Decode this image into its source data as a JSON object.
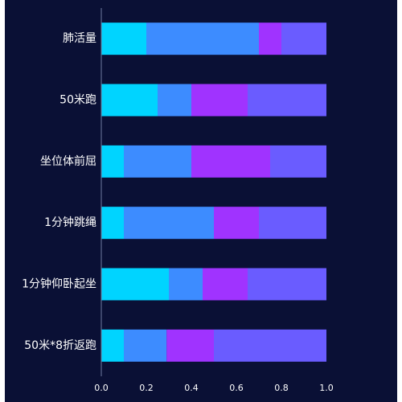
{
  "chart_data": {
    "type": "bar",
    "orientation": "horizontal",
    "stacked": true,
    "categories": [
      "肺活量",
      "50米跑",
      "坐位体前屈",
      "1分钟跳绳",
      "1分钟仰卧起坐",
      "50米*8折返跑"
    ],
    "series": [
      {
        "color": "#00d4ff",
        "values": [
          0.2,
          0.25,
          0.1,
          0.1,
          0.3,
          0.1
        ]
      },
      {
        "color": "#3d8cff",
        "values": [
          0.5,
          0.15,
          0.3,
          0.4,
          0.15,
          0.19
        ]
      },
      {
        "color": "#a033ff",
        "values": [
          0.1,
          0.25,
          0.35,
          0.2,
          0.2,
          0.21
        ]
      },
      {
        "color": "#6a5cff",
        "values": [
          0.2,
          0.35,
          0.25,
          0.3,
          0.35,
          0.5
        ]
      }
    ],
    "xlim": [
      0,
      1
    ],
    "xticks": [
      "0.0",
      "0.2",
      "0.4",
      "0.6",
      "0.8",
      "1.0"
    ],
    "grid": false,
    "legend": "none",
    "title": "",
    "xlabel": "",
    "ylabel": ""
  },
  "colors": {
    "background": "#0a1035",
    "axis": "#6e7a9e",
    "text": "#ffffff"
  }
}
